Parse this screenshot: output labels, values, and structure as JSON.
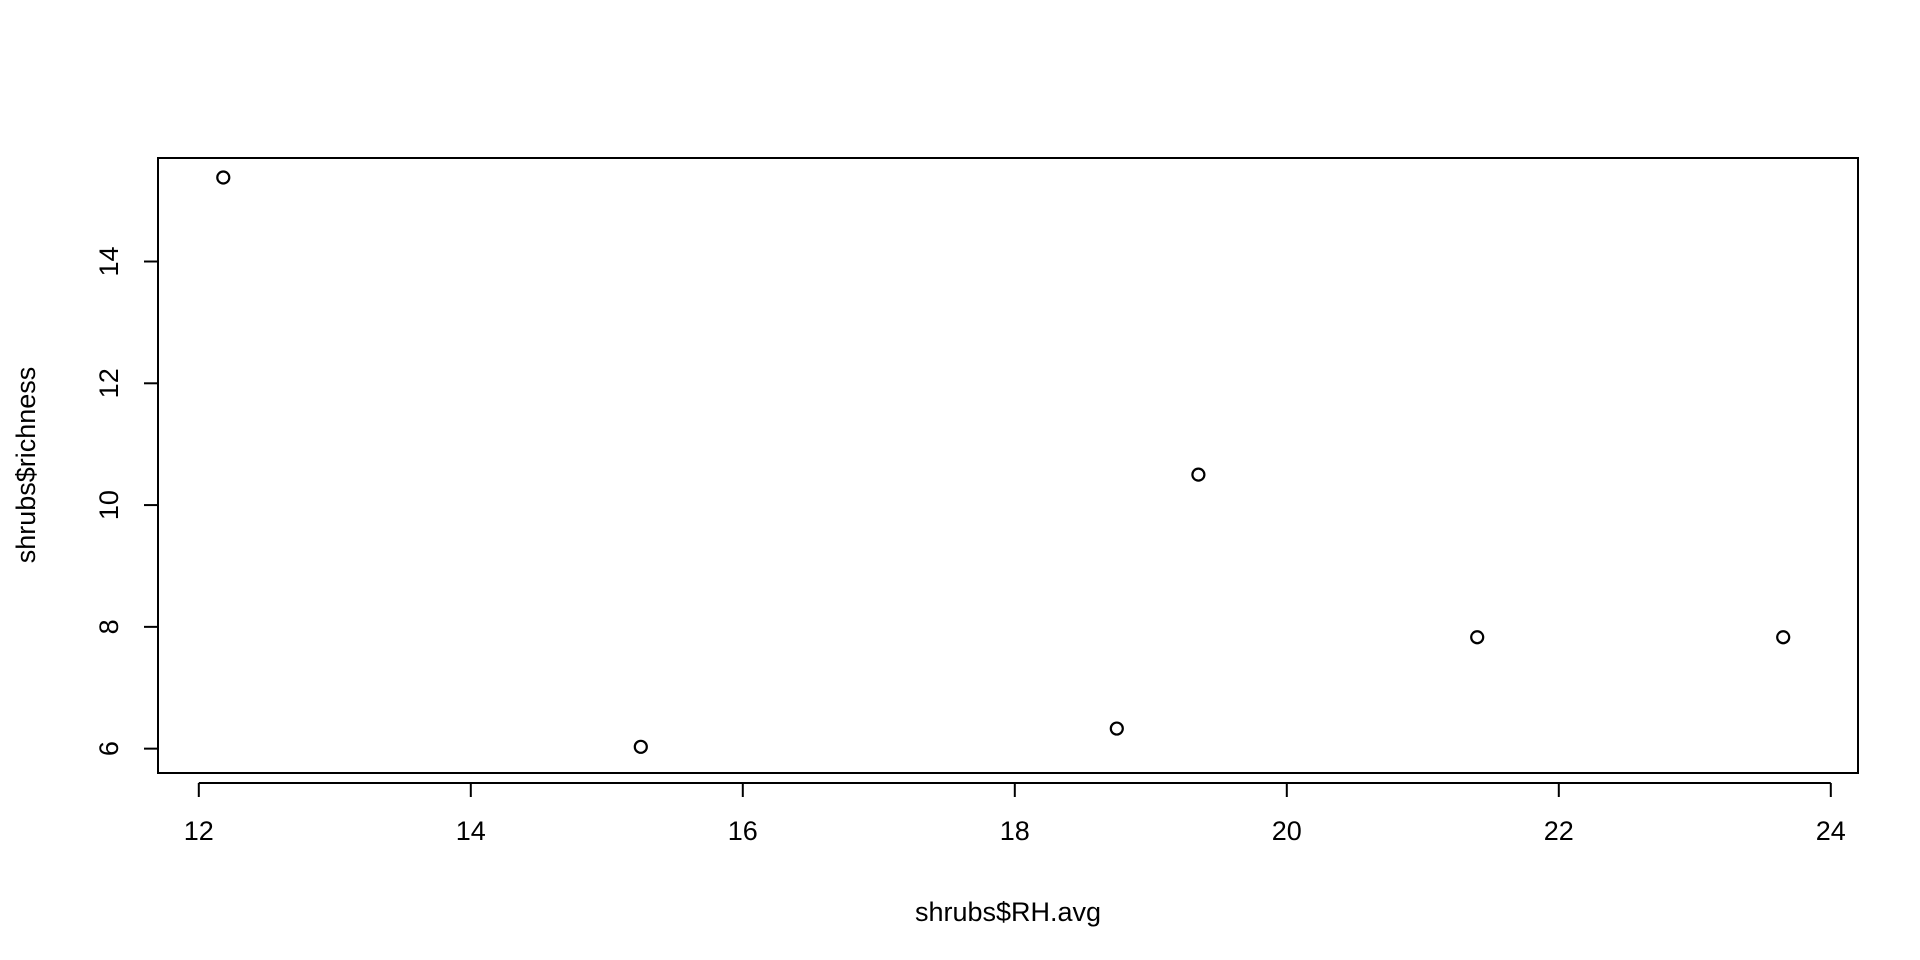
{
  "chart_data": {
    "type": "scatter",
    "title": "",
    "xlabel": "shrubs$RH.avg",
    "ylabel": "shrubs$richness",
    "xlim": [
      11.7,
      24.2
    ],
    "ylim": [
      5.6,
      15.7
    ],
    "xticks": [
      12,
      14,
      16,
      18,
      20,
      22,
      24
    ],
    "yticks": [
      6,
      8,
      10,
      12,
      14
    ],
    "marker": "open-circle",
    "grid": false,
    "series": [
      {
        "name": "shrubs",
        "x": [
          12.18,
          15.25,
          18.75,
          19.35,
          21.4,
          23.65
        ],
        "y": [
          15.38,
          6.03,
          6.33,
          10.5,
          7.83,
          7.83
        ]
      }
    ],
    "colors": {
      "ink": "#000000",
      "background": "#ffffff"
    }
  }
}
